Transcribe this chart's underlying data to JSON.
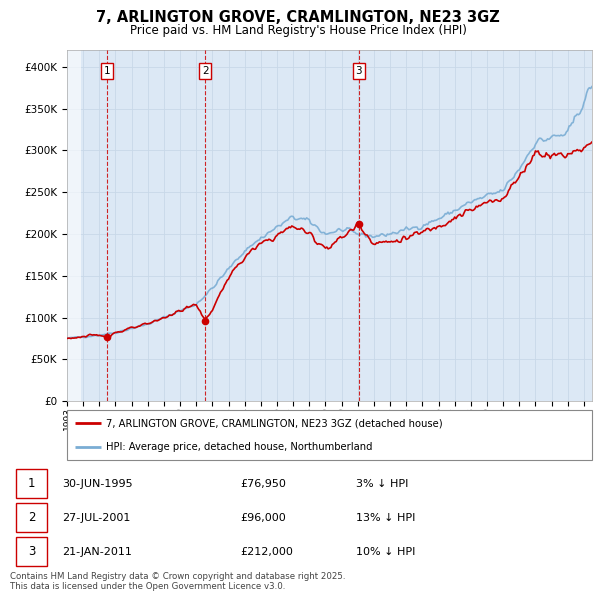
{
  "title": "7, ARLINGTON GROVE, CRAMLINGTON, NE23 3GZ",
  "subtitle": "Price paid vs. HM Land Registry's House Price Index (HPI)",
  "ylim": [
    0,
    420000
  ],
  "yticks": [
    0,
    50000,
    100000,
    150000,
    200000,
    250000,
    300000,
    350000,
    400000
  ],
  "ytick_labels": [
    "£0",
    "£50K",
    "£100K",
    "£150K",
    "£200K",
    "£250K",
    "£300K",
    "£350K",
    "£400K"
  ],
  "sale_dates_float": [
    1995.496,
    2001.567,
    2011.054
  ],
  "sale_prices": [
    76950,
    96000,
    212000
  ],
  "sale_labels": [
    "1",
    "2",
    "3"
  ],
  "legend_entries": [
    "7, ARLINGTON GROVE, CRAMLINGTON, NE23 3GZ (detached house)",
    "HPI: Average price, detached house, Northumberland"
  ],
  "table_entries": [
    {
      "label": "1",
      "date": "30-JUN-1995",
      "price": "£76,950",
      "note": "3% ↓ HPI"
    },
    {
      "label": "2",
      "date": "27-JUL-2001",
      "price": "£96,000",
      "note": "13% ↓ HPI"
    },
    {
      "label": "3",
      "date": "21-JAN-2011",
      "price": "£212,000",
      "note": "10% ↓ HPI"
    }
  ],
  "footer": "Contains HM Land Registry data © Crown copyright and database right 2025.\nThis data is licensed under the Open Government Licence v3.0.",
  "property_line_color": "#cc0000",
  "hpi_line_color": "#7aadd4",
  "vline_color": "#cc0000",
  "grid_color": "#c8d8e8",
  "xlim_start": 1993.0,
  "xlim_end": 2025.5,
  "hpi_seed": 42,
  "prop_seed": 123
}
